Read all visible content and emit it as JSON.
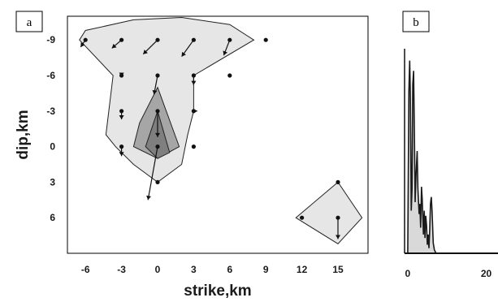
{
  "panels": [
    {
      "label": "a"
    },
    {
      "label": "b"
    }
  ],
  "chart_data": [
    {
      "type": "scatter",
      "panel": "a",
      "xlabel": "strike,km",
      "ylabel": "dip,km",
      "xticks": [
        -6,
        -3,
        0,
        3,
        6,
        9,
        12,
        15
      ],
      "yticks": [
        -9,
        -6,
        -3,
        0,
        3,
        6
      ],
      "xlim": [
        -7.5,
        17.5
      ],
      "ylim": [
        -11,
        9
      ],
      "y_inverted": true,
      "colors": {
        "outer": "#e6e6e6",
        "middle": "#a6a6a6",
        "inner": "#7f7f7f",
        "marks": "#111111"
      },
      "regions": [
        {
          "level": "outer",
          "points": [
            [
              -6.5,
              -9
            ],
            [
              -6,
              -9.8
            ],
            [
              -2,
              -10.7
            ],
            [
              2,
              -10.9
            ],
            [
              6,
              -10.3
            ],
            [
              8,
              -9
            ],
            [
              3,
              -6
            ],
            [
              3,
              -3
            ],
            [
              2.5,
              -1
            ],
            [
              2,
              1.5
            ],
            [
              0,
              3
            ],
            [
              -2,
              1.5
            ],
            [
              -3.5,
              0
            ],
            [
              -4.3,
              -1
            ],
            [
              -3.7,
              -6
            ]
          ]
        },
        {
          "level": "outer",
          "points": [
            [
              11.5,
              6
            ],
            [
              15,
              3
            ],
            [
              17,
              6
            ],
            [
              15,
              8.2
            ]
          ]
        },
        {
          "level": "middle",
          "points": [
            [
              0,
              -5
            ],
            [
              1.8,
              0
            ],
            [
              0,
              1
            ],
            [
              -2,
              0
            ],
            [
              -1.5,
              -2
            ]
          ]
        },
        {
          "level": "inner",
          "points": [
            [
              0,
              -3
            ],
            [
              1,
              0.5
            ],
            [
              0,
              1
            ],
            [
              -1,
              0
            ]
          ]
        }
      ],
      "points": [
        {
          "x": -6,
          "y": -9,
          "dx": -0.4,
          "dy": 0.6
        },
        {
          "x": -3,
          "y": -9,
          "dx": -0.8,
          "dy": 0.7
        },
        {
          "x": 0,
          "y": -9,
          "dx": -1.2,
          "dy": 1.2
        },
        {
          "x": 3,
          "y": -9,
          "dx": -1.0,
          "dy": 1.4
        },
        {
          "x": 6,
          "y": -9,
          "dx": -0.5,
          "dy": 1.3
        },
        {
          "x": 9,
          "y": -9,
          "dx": 0,
          "dy": 0
        },
        {
          "x": -3,
          "y": -6,
          "dx": 0,
          "dy": 0.1
        },
        {
          "x": 0,
          "y": -6,
          "dx": -0.3,
          "dy": 1.6
        },
        {
          "x": 3,
          "y": -6,
          "dx": 0,
          "dy": 0.8
        },
        {
          "x": 6,
          "y": -6,
          "dx": 0,
          "dy": 0
        },
        {
          "x": -3,
          "y": -3,
          "dx": 0,
          "dy": 0.7
        },
        {
          "x": 0,
          "y": -3,
          "dx": 0,
          "dy": 2.2
        },
        {
          "x": 3,
          "y": -3,
          "dx": 0.3,
          "dy": 0
        },
        {
          "x": -3,
          "y": 0,
          "dx": 0,
          "dy": 0.8
        },
        {
          "x": 0,
          "y": 0,
          "dx": -0.8,
          "dy": 4.5
        },
        {
          "x": 3,
          "y": 0,
          "dx": 0,
          "dy": 0
        },
        {
          "x": 0,
          "y": 3,
          "dx": 0,
          "dy": 0
        },
        {
          "x": 15,
          "y": 3,
          "dx": 0,
          "dy": 0
        },
        {
          "x": 12,
          "y": 6,
          "dx": 0,
          "dy": 0
        },
        {
          "x": 15,
          "y": 6,
          "dx": 0,
          "dy": 1.8
        }
      ]
    },
    {
      "type": "area",
      "panel": "b",
      "xticks": [
        0,
        20
      ],
      "xlim": [
        -0.8,
        23
      ],
      "ylim": [
        0,
        12
      ],
      "colors": {
        "fill": "#d9d9d9",
        "line": "#1a1a1a"
      },
      "x": [
        0,
        0.3,
        0.5,
        0.7,
        0.9,
        1.1,
        1.3,
        1.5,
        1.7,
        1.9,
        2.1,
        2.4,
        2.6,
        2.9,
        3.1,
        3.3,
        3.5,
        3.7,
        4.0,
        4.2,
        4.4,
        4.6,
        4.8,
        5.0,
        5.2,
        5.4,
        5.6,
        5.8,
        6.0,
        6.2,
        6.5,
        6.8,
        7.2
      ],
      "y": [
        0,
        9.5,
        11.3,
        9.0,
        2.5,
        3.8,
        9.9,
        10.7,
        7.0,
        3.0,
        4.5,
        6.0,
        3.8,
        2.3,
        2.9,
        1.5,
        3.9,
        3.2,
        1.1,
        2.5,
        0.9,
        2.2,
        1.6,
        0.5,
        1.1,
        0.3,
        1.3,
        2.9,
        3.3,
        2.5,
        0.6,
        0.2,
        0
      ]
    }
  ]
}
